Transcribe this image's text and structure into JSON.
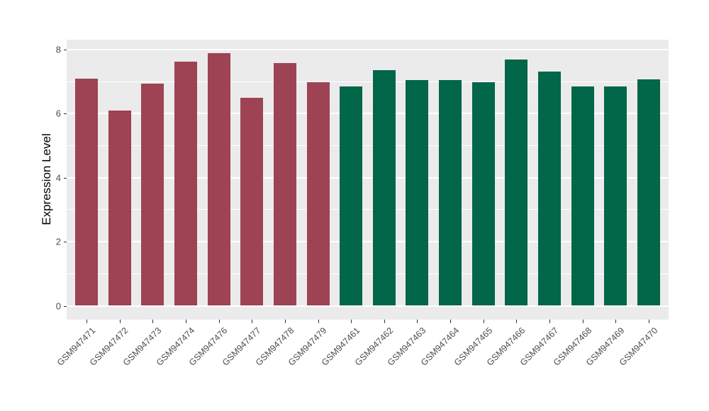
{
  "chart_data": {
    "type": "bar",
    "title": "",
    "xlabel": "",
    "ylabel": "Expression Level",
    "ylim": [
      0,
      8.3
    ],
    "yticks": [
      0,
      2,
      4,
      6,
      8
    ],
    "minor_yticks": [
      1,
      3,
      5,
      7
    ],
    "grid": "white major and minor horizontal gridlines on gray panel",
    "legend_position": "none",
    "categories": [
      "GSM947471",
      "GSM947472",
      "GSM947473",
      "GSM947474",
      "GSM947476",
      "GSM947477",
      "GSM947478",
      "GSM947479",
      "GSM947461",
      "GSM947462",
      "GSM947463",
      "GSM947464",
      "GSM947465",
      "GSM947466",
      "GSM947467",
      "GSM947468",
      "GSM947469",
      "GSM947470"
    ],
    "values": [
      7.08,
      6.09,
      6.94,
      7.63,
      7.88,
      6.5,
      7.58,
      6.97,
      6.84,
      7.36,
      7.05,
      7.05,
      6.97,
      7.68,
      7.32,
      6.84,
      6.84,
      7.06
    ],
    "bar_group_index": [
      0,
      0,
      0,
      0,
      0,
      0,
      0,
      0,
      1,
      1,
      1,
      1,
      1,
      1,
      1,
      1,
      1,
      1
    ],
    "groups": [
      {
        "name": "maroon-group",
        "color": "#9D4353"
      },
      {
        "name": "green-group",
        "color": "#026649"
      }
    ]
  },
  "theme": {
    "panel_background": "#EBEBEB",
    "grid_color": "#FFFFFF",
    "axis_text_color": "#4D4D4D",
    "axis_title_color": "#000000",
    "tick_mark_color": "#333333",
    "figure_background": "#FFFFFF"
  }
}
